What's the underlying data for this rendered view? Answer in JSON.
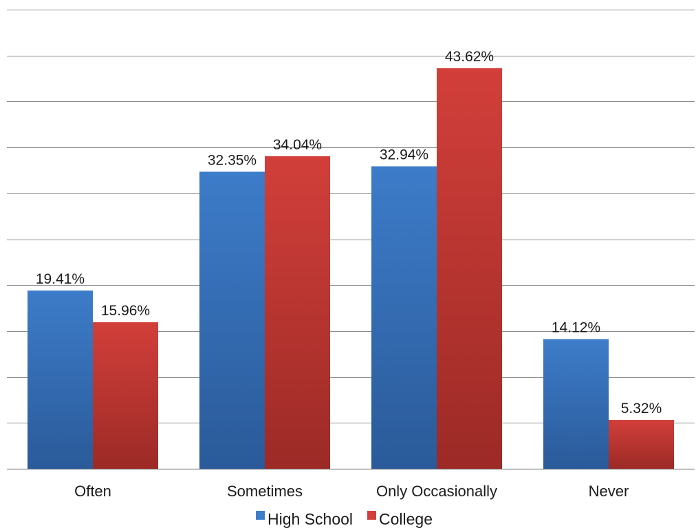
{
  "chart_data": {
    "type": "bar",
    "title": "",
    "xlabel": "",
    "ylabel": "",
    "categories": [
      "Often",
      "Sometimes",
      "Only Occasionally",
      "Never"
    ],
    "series": [
      {
        "name": "High School",
        "values": [
          19.41,
          32.35,
          32.94,
          14.12
        ],
        "labels": [
          "19.41%",
          "32.35%",
          "32.94%",
          "14.12%"
        ],
        "color": "#3d7cc9",
        "color_dark": "#2a5a99"
      },
      {
        "name": "College",
        "values": [
          15.96,
          34.04,
          43.62,
          5.32
        ],
        "labels": [
          "15.96%",
          "34.04%",
          "43.62%",
          "5.32%"
        ],
        "color": "#d23f3a",
        "color_dark": "#9c2a26"
      }
    ],
    "ylim": [
      0,
      50
    ],
    "gridlines": [
      0,
      5,
      10,
      15,
      20,
      25,
      30,
      35,
      40,
      45,
      50
    ],
    "grid": true,
    "y_tick_labels_shown": false,
    "legend_position": "bottom"
  }
}
